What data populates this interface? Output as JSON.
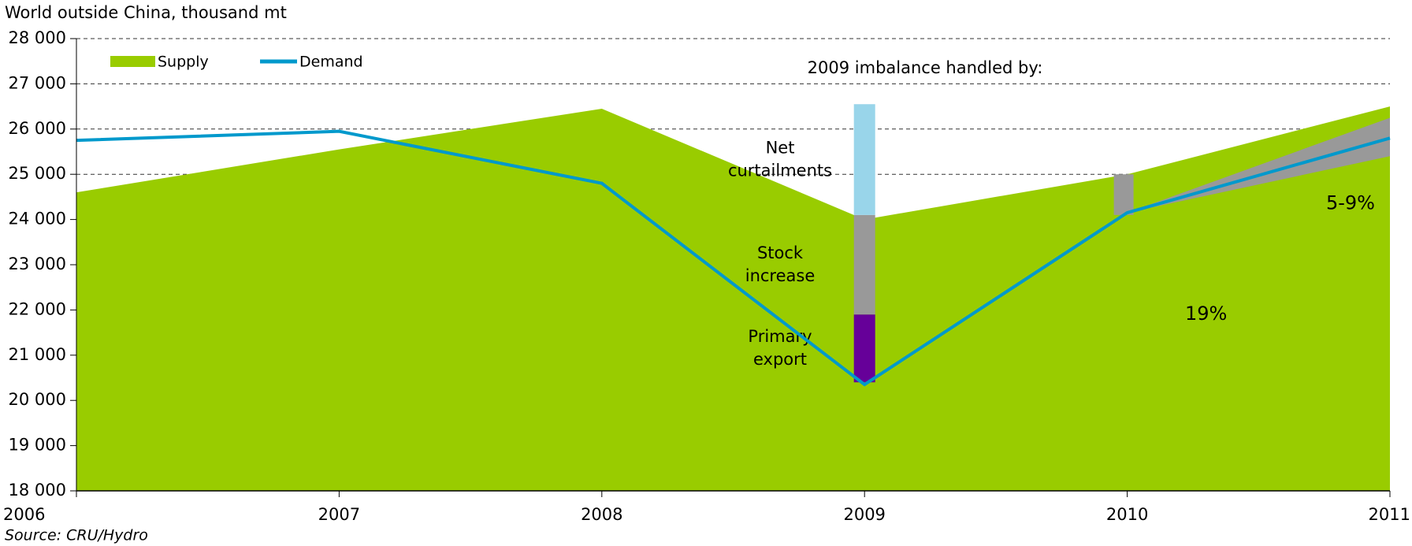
{
  "chart_data": {
    "type": "area-line",
    "title": "World outside China, thousand mt",
    "source": "Source: CRU/Hydro",
    "x": [
      2006,
      2007,
      2008,
      2009,
      2010,
      2011
    ],
    "xlim": [
      2006,
      2011
    ],
    "xticks": [
      2006,
      2007,
      2008,
      2009,
      2010,
      2011
    ],
    "ylim": [
      18000,
      28000
    ],
    "yticks": [
      {
        "value": 18000,
        "label": "18 000"
      },
      {
        "value": 19000,
        "label": "19 000"
      },
      {
        "value": 20000,
        "label": "20 000"
      },
      {
        "value": 21000,
        "label": "21 000"
      },
      {
        "value": 22000,
        "label": "22 000"
      },
      {
        "value": 23000,
        "label": "23 000"
      },
      {
        "value": 24000,
        "label": "24 000"
      },
      {
        "value": 25000,
        "label": "25 000"
      },
      {
        "value": 26000,
        "label": "26 000"
      },
      {
        "value": 27000,
        "label": "27 000"
      },
      {
        "value": 28000,
        "label": "28 000"
      }
    ],
    "grid": true,
    "series": [
      {
        "name": "Supply",
        "color": "#99cc00",
        "kind": "area",
        "values": [
          24600,
          25550,
          26450,
          24000,
          25000,
          26500
        ]
      },
      {
        "name": "Demand",
        "color": "#0099cc",
        "kind": "line",
        "values": [
          25750,
          25950,
          24800,
          20350,
          24150,
          25800
        ]
      }
    ],
    "imbalance": {
      "title": "2009 imbalance handled by:",
      "x": 2009,
      "base": 20400,
      "segments": [
        {
          "label": [
            "Primary",
            "export"
          ],
          "color": "#660099",
          "value": 1500
        },
        {
          "label": [
            "Stock",
            "increase"
          ],
          "color": "#999999",
          "value": 2200
        },
        {
          "label": [
            "Net",
            "curtailments"
          ],
          "color": "#99d5ea",
          "value": 2450
        }
      ]
    },
    "range_2010": {
      "x": 2010,
      "low": 24100,
      "high": 25000,
      "color": "#999999"
    },
    "forecast_range": {
      "x": [
        2010,
        2011
      ],
      "low": [
        24150,
        25400
      ],
      "high": [
        24150,
        26250
      ],
      "color": "#999999"
    },
    "annotations": [
      {
        "text": "19%",
        "x": 2010.3,
        "y": 21900
      },
      {
        "text": "5-9%",
        "x": 2010.85,
        "y": 24350
      }
    ]
  }
}
